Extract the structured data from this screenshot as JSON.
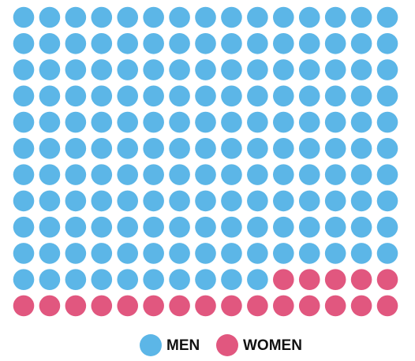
{
  "chart_data": {
    "type": "waffle",
    "series": [
      {
        "name": "MEN",
        "color": "#5cb6e7",
        "value": 160
      },
      {
        "name": "WOMEN",
        "color": "#e1577f",
        "value": 20
      }
    ]
  }
}
